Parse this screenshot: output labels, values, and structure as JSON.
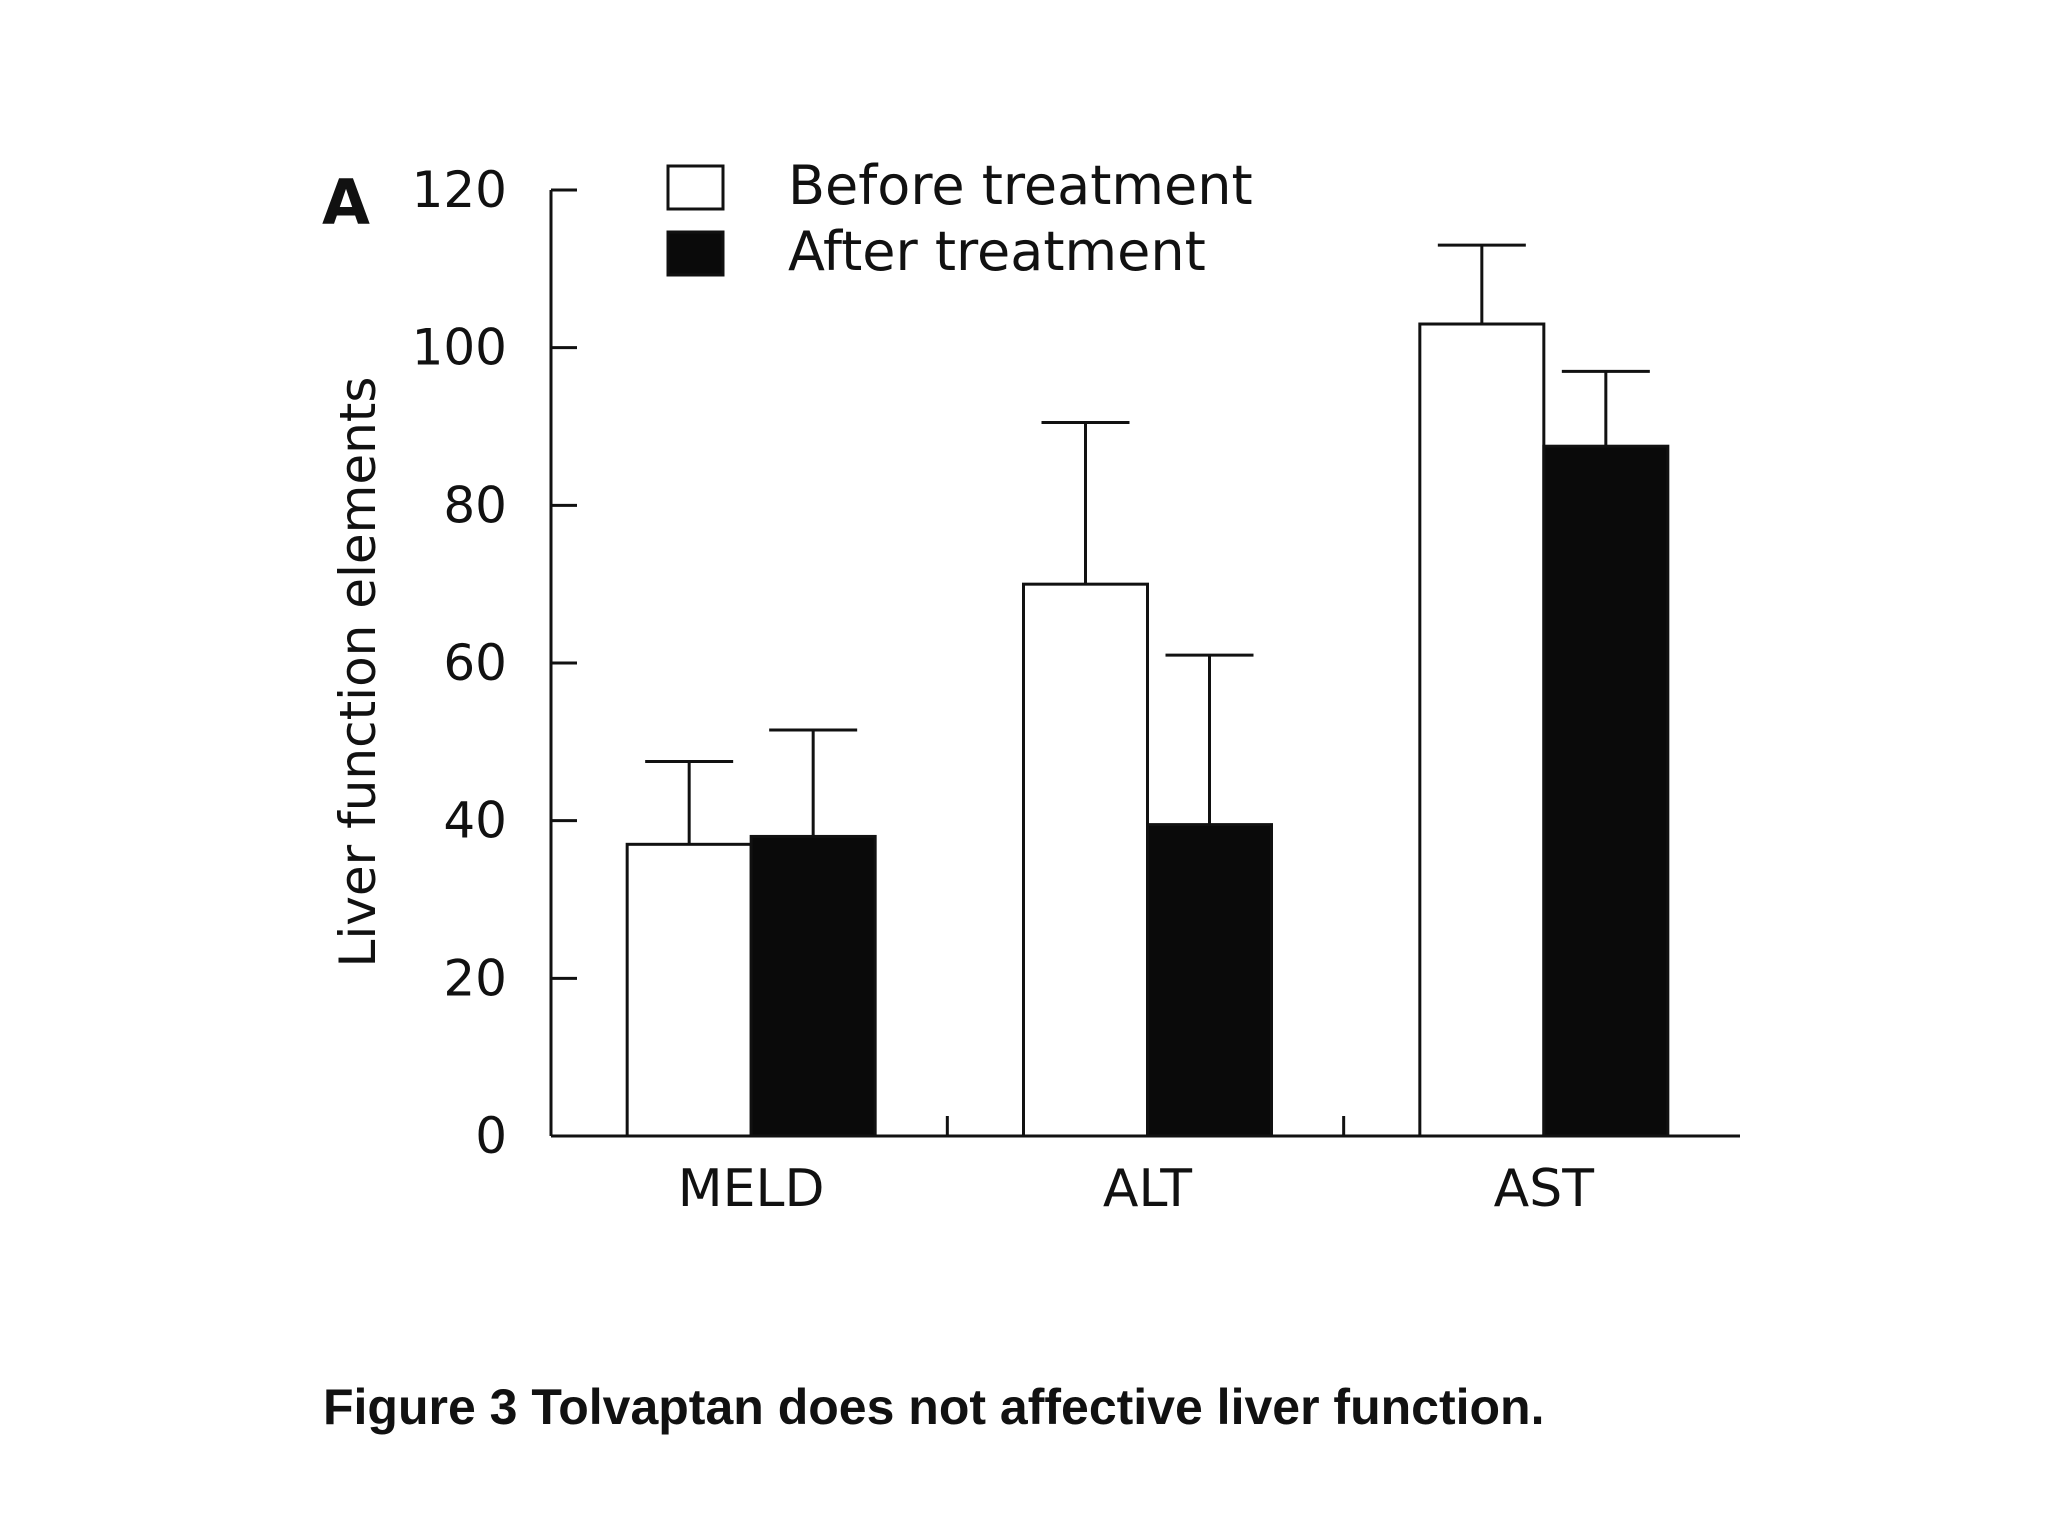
{
  "panel_label": "A",
  "caption": {
    "title": "Figure 3  Tolvaptan does not affective liver function."
  },
  "chart_data": {
    "type": "bar",
    "title": "",
    "xlabel": "",
    "ylabel": "Liver function elements",
    "ylim": [
      0,
      120
    ],
    "yticks": [
      "0",
      "20",
      "40",
      "60",
      "80",
      "100",
      "120"
    ],
    "categories": [
      "MELD",
      "ALT",
      "AST"
    ],
    "legend_position": "top-left",
    "series": [
      {
        "name": "Before treatment",
        "color": "#ffffff",
        "values": [
          37,
          70,
          103
        ],
        "error": [
          10.5,
          20.5,
          10
        ]
      },
      {
        "name": "After treatment",
        "color": "#0a0a0a",
        "values": [
          38,
          39.5,
          87.5
        ],
        "error": [
          13.5,
          21.5,
          9.5
        ]
      }
    ],
    "grid": false
  }
}
